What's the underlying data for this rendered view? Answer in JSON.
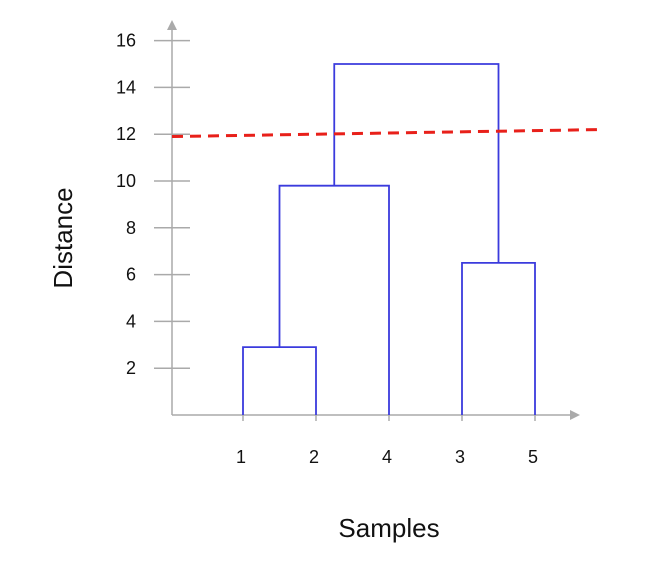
{
  "chart_data": {
    "type": "dendrogram",
    "xlabel": "Samples",
    "ylabel": "Distance",
    "leaves": [
      "1",
      "2",
      "4",
      "3",
      "5"
    ],
    "y_ticks": [
      2,
      4,
      6,
      8,
      10,
      12,
      14,
      16
    ],
    "y_tick_labels": [
      "2",
      "4",
      "6",
      "8",
      "10",
      "12",
      "14",
      "16"
    ],
    "ylim": [
      0,
      16.8
    ],
    "merges": [
      {
        "left": "1",
        "right": "2",
        "height": 2.9
      },
      {
        "left": "3",
        "right": "5",
        "height": 6.5
      },
      {
        "left": "(1,2)",
        "right": "4",
        "height": 9.8
      },
      {
        "left": "(1,2,4)",
        "right": "(3,5)",
        "height": 15.0
      }
    ],
    "threshold": {
      "start": 11.9,
      "end": 12.2,
      "style": "dashed"
    },
    "colors": {
      "links": "#3b3bdd",
      "threshold": "#e8201a",
      "axes": "#aaaaaa"
    }
  }
}
